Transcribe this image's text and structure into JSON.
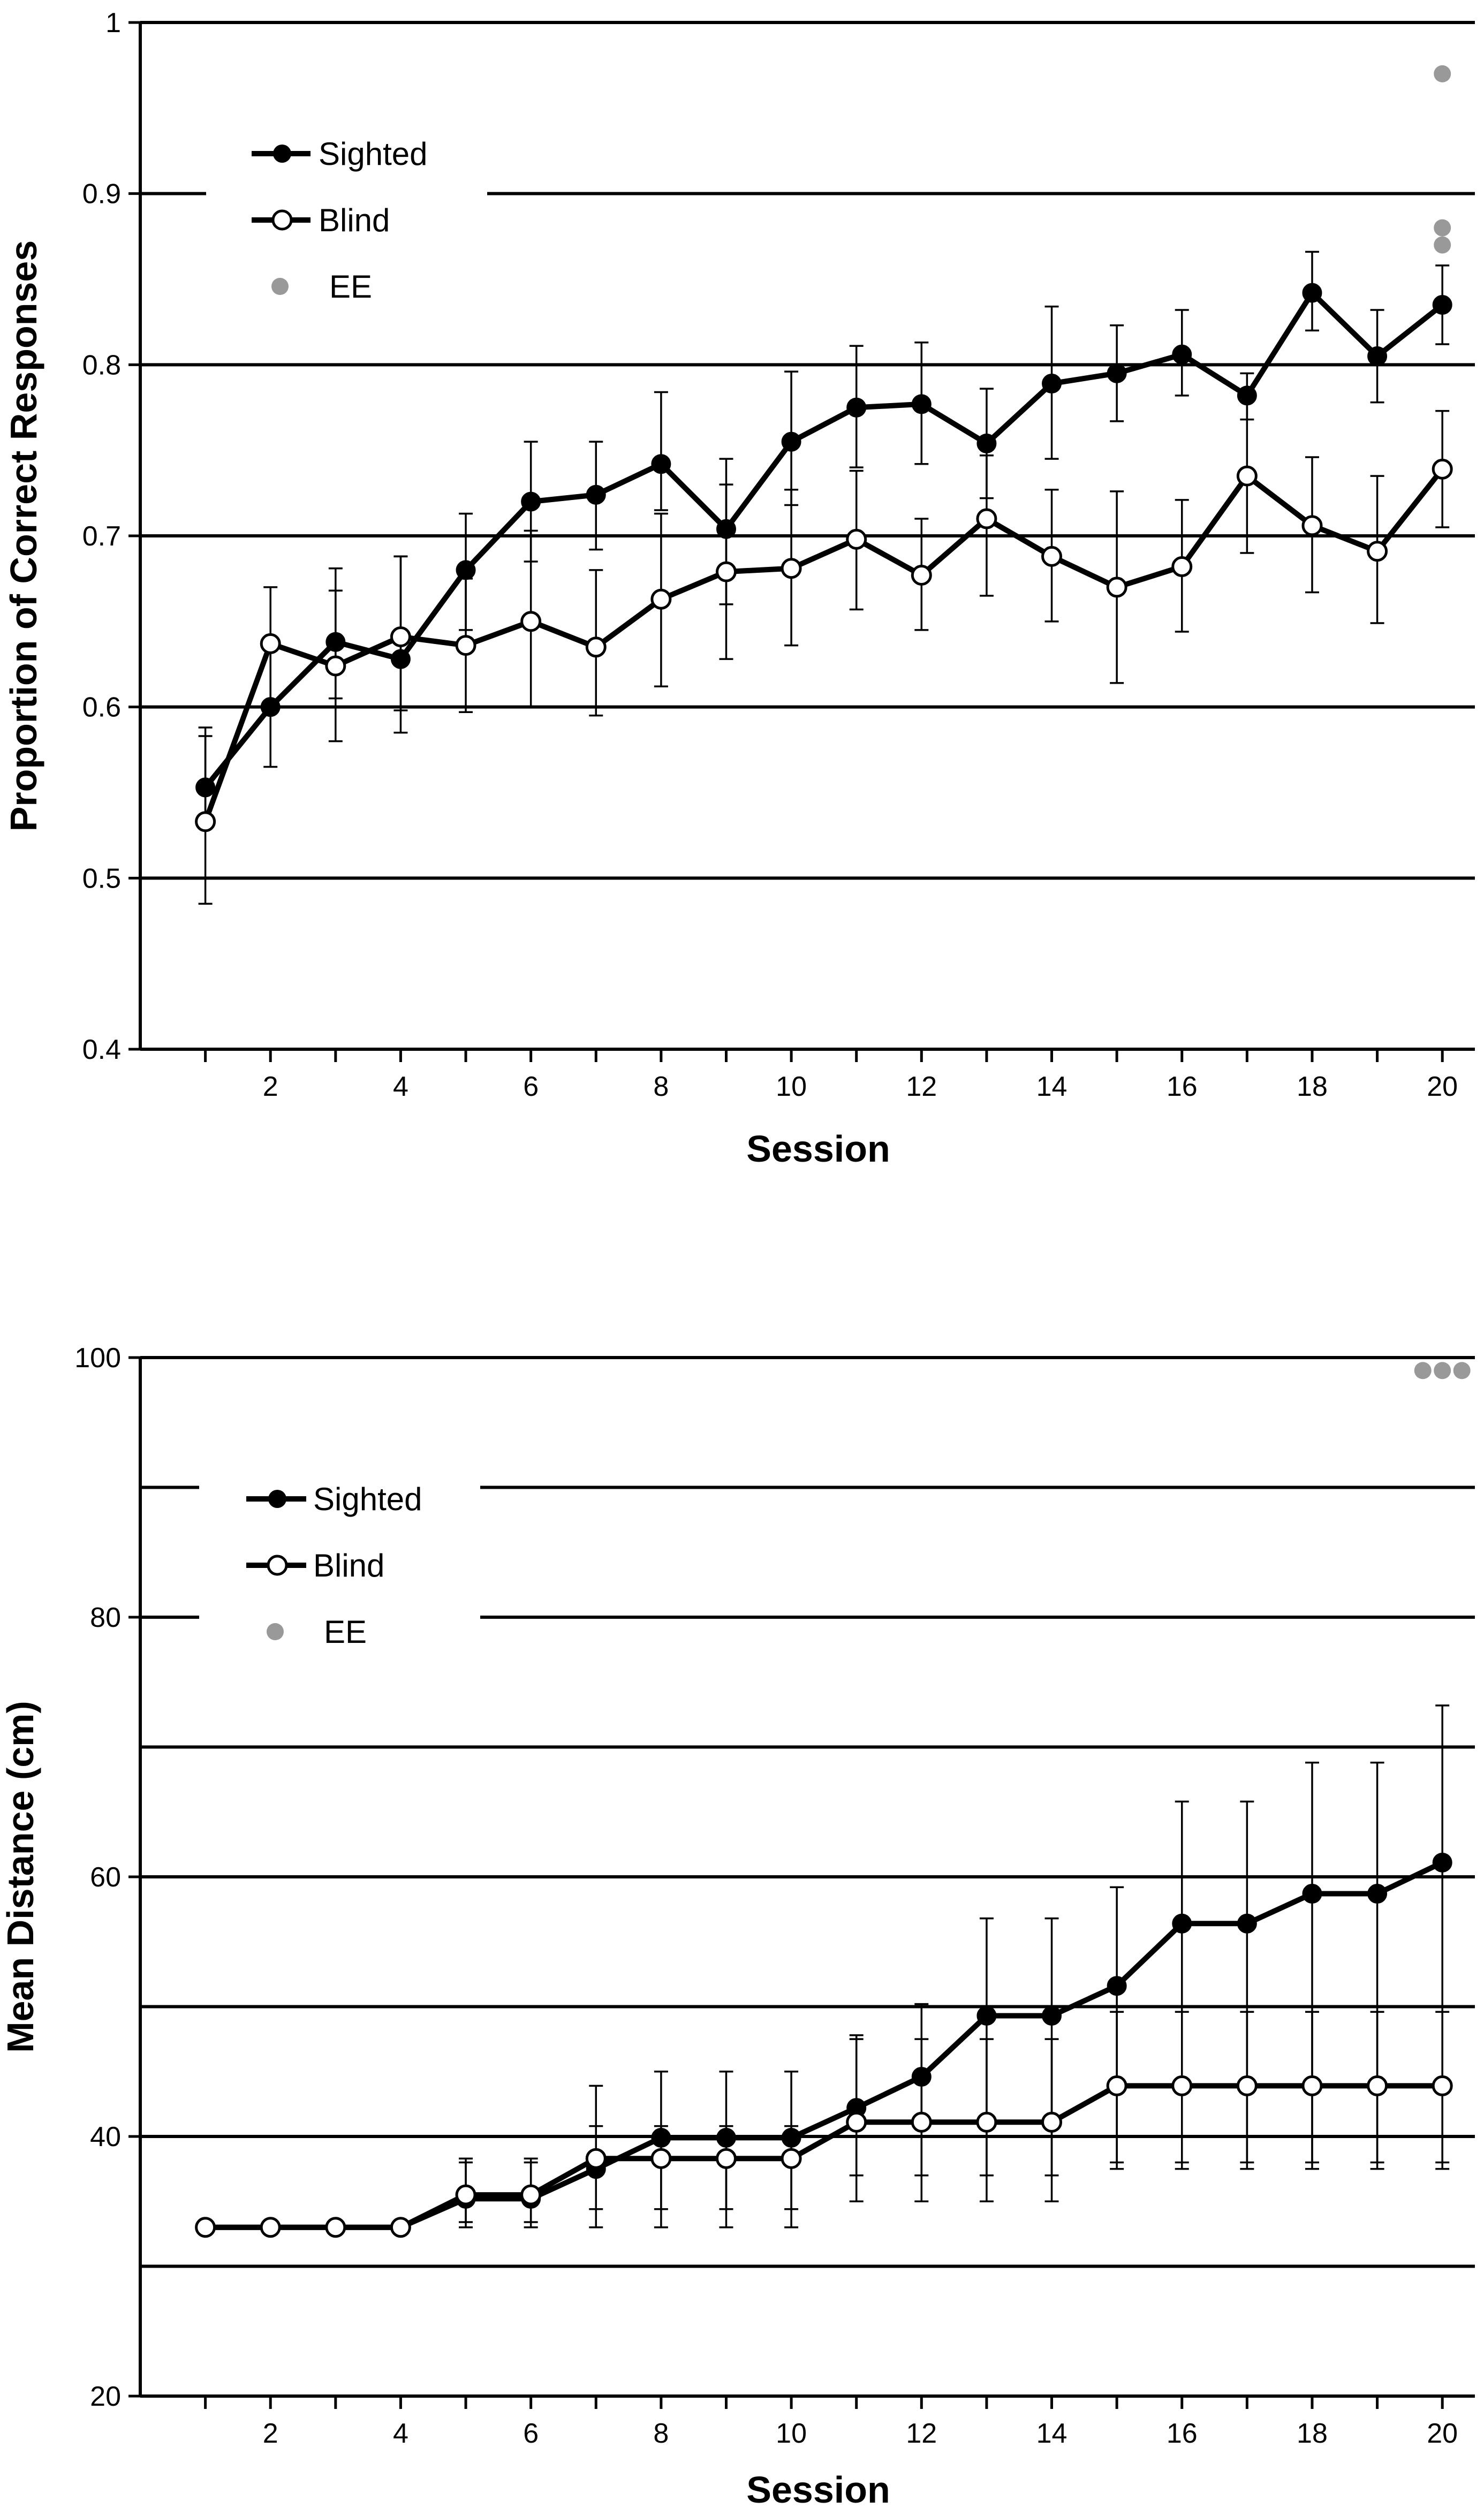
{
  "colors": {
    "sighted": "#000000",
    "blind_fill": "#ffffff",
    "blind_stroke": "#000000",
    "ee": "#999999",
    "grid": "#000000"
  },
  "chart_data": [
    {
      "type": "line",
      "xlabel": "Session",
      "ylabel": "Proportion of Correct Responses",
      "xlim": [
        0,
        20.5
      ],
      "ylim": [
        0.4,
        1.0
      ],
      "yticks": [
        "0.4",
        "0.5",
        "0.6",
        "0.7",
        "0.8",
        "0.9",
        "1"
      ],
      "xticks": [
        "2",
        "4",
        "6",
        "8",
        "10",
        "12",
        "14",
        "16",
        "18",
        "20"
      ],
      "grid": true,
      "legend": {
        "placement": "top-left",
        "labels": [
          "Sighted",
          "Blind",
          "EE"
        ]
      },
      "x": [
        1,
        2,
        3,
        4,
        5,
        6,
        7,
        8,
        9,
        10,
        11,
        12,
        13,
        14,
        15,
        16,
        17,
        18,
        19,
        20
      ],
      "series": [
        {
          "name": "Sighted",
          "marker": "filled",
          "values": [
            0.553,
            0.6,
            0.638,
            0.628,
            0.68,
            0.72,
            0.724,
            0.742,
            0.704,
            0.755,
            0.775,
            0.777,
            0.754,
            0.789,
            0.795,
            0.806,
            0.782,
            0.842,
            0.805,
            0.835
          ],
          "err_low": [
            0.533,
            0.565,
            0.605,
            0.585,
            0.645,
            0.685,
            0.692,
            0.715,
            0.66,
            0.718,
            0.74,
            0.742,
            0.722,
            0.745,
            0.767,
            0.782,
            0.768,
            0.82,
            0.778,
            0.812
          ],
          "err_high": [
            0.583,
            0.635,
            0.668,
            0.688,
            0.713,
            0.755,
            0.755,
            0.784,
            0.745,
            0.796,
            0.811,
            0.813,
            0.786,
            0.834,
            0.823,
            0.832,
            0.795,
            0.866,
            0.832,
            0.858
          ]
        },
        {
          "name": "Blind",
          "marker": "open",
          "values": [
            0.533,
            0.637,
            0.624,
            0.641,
            0.636,
            0.65,
            0.635,
            0.663,
            0.679,
            0.681,
            0.698,
            0.677,
            0.71,
            0.688,
            0.67,
            0.682,
            0.735,
            0.706,
            0.691,
            0.739
          ],
          "err_low": [
            0.485,
            0.6,
            0.58,
            0.598,
            0.597,
            0.6,
            0.595,
            0.612,
            0.628,
            0.636,
            0.657,
            0.645,
            0.665,
            0.65,
            0.614,
            0.644,
            0.69,
            0.667,
            0.649,
            0.705
          ],
          "err_high": [
            0.588,
            0.67,
            0.681,
            0.688,
            0.675,
            0.703,
            0.68,
            0.713,
            0.73,
            0.727,
            0.738,
            0.71,
            0.747,
            0.727,
            0.726,
            0.721,
            0.783,
            0.746,
            0.735,
            0.773
          ]
        },
        {
          "name": "EE",
          "marker": "gray",
          "x": [
            20,
            20,
            20
          ],
          "values": [
            0.97,
            0.88,
            0.87
          ]
        }
      ]
    },
    {
      "type": "line",
      "xlabel": "Session",
      "ylabel": "Mean Distance  (cm)",
      "xlim": [
        0,
        20.5
      ],
      "ylim": [
        20,
        100
      ],
      "yticks": [
        "20",
        "40",
        "60",
        "80",
        "100"
      ],
      "gridlines": [
        30,
        40,
        50,
        60,
        70,
        80,
        90,
        100
      ],
      "xticks": [
        "2",
        "4",
        "6",
        "8",
        "10",
        "12",
        "14",
        "16",
        "18",
        "20"
      ],
      "grid": true,
      "legend": {
        "placement": "top-left",
        "labels": [
          "Sighted",
          "Blind",
          "EE"
        ]
      },
      "x": [
        1,
        2,
        3,
        4,
        5,
        6,
        7,
        8,
        9,
        10,
        11,
        12,
        13,
        14,
        15,
        16,
        17,
        18,
        19,
        20
      ],
      "series": [
        {
          "name": "Sighted",
          "marker": "filled",
          "values": [
            33.0,
            33.0,
            33.0,
            33.0,
            35.2,
            35.2,
            37.5,
            39.9,
            39.9,
            39.9,
            42.2,
            44.6,
            49.3,
            49.3,
            51.6,
            56.4,
            56.4,
            58.7,
            58.7,
            61.1
          ],
          "err_low": [
            33.0,
            33.0,
            33.0,
            33.0,
            33.0,
            33.0,
            33.0,
            33.0,
            33.0,
            33.0,
            35.0,
            35.0,
            35.0,
            35.0,
            37.5,
            37.5,
            37.5,
            37.5,
            37.5,
            37.5
          ],
          "err_high": [
            33.0,
            33.0,
            33.0,
            33.0,
            38.0,
            38.0,
            43.9,
            45.0,
            45.0,
            45.0,
            47.8,
            50.2,
            56.8,
            56.8,
            59.2,
            65.8,
            65.8,
            68.8,
            68.8,
            73.2
          ]
        },
        {
          "name": "Blind",
          "marker": "open",
          "values": [
            33.0,
            33.0,
            33.0,
            33.0,
            35.5,
            35.5,
            38.3,
            38.3,
            38.3,
            38.3,
            41.1,
            41.1,
            41.1,
            41.1,
            43.9,
            43.9,
            43.9,
            43.9,
            43.9,
            43.9
          ],
          "err_low": [
            33.0,
            33.0,
            33.0,
            33.0,
            33.4,
            33.4,
            34.4,
            34.4,
            34.4,
            34.4,
            37.0,
            37.0,
            37.0,
            37.0,
            38.0,
            38.0,
            38.0,
            38.0,
            38.0,
            38.0
          ],
          "err_high": [
            33.0,
            33.0,
            33.0,
            33.0,
            38.3,
            38.3,
            40.8,
            40.8,
            40.8,
            40.8,
            47.5,
            47.5,
            47.5,
            47.5,
            49.6,
            49.6,
            49.6,
            49.6,
            49.6,
            49.6
          ]
        },
        {
          "name": "EE",
          "marker": "gray",
          "x": [
            19.7,
            20.0,
            20.3
          ],
          "values": [
            99,
            99,
            99
          ]
        }
      ]
    }
  ]
}
